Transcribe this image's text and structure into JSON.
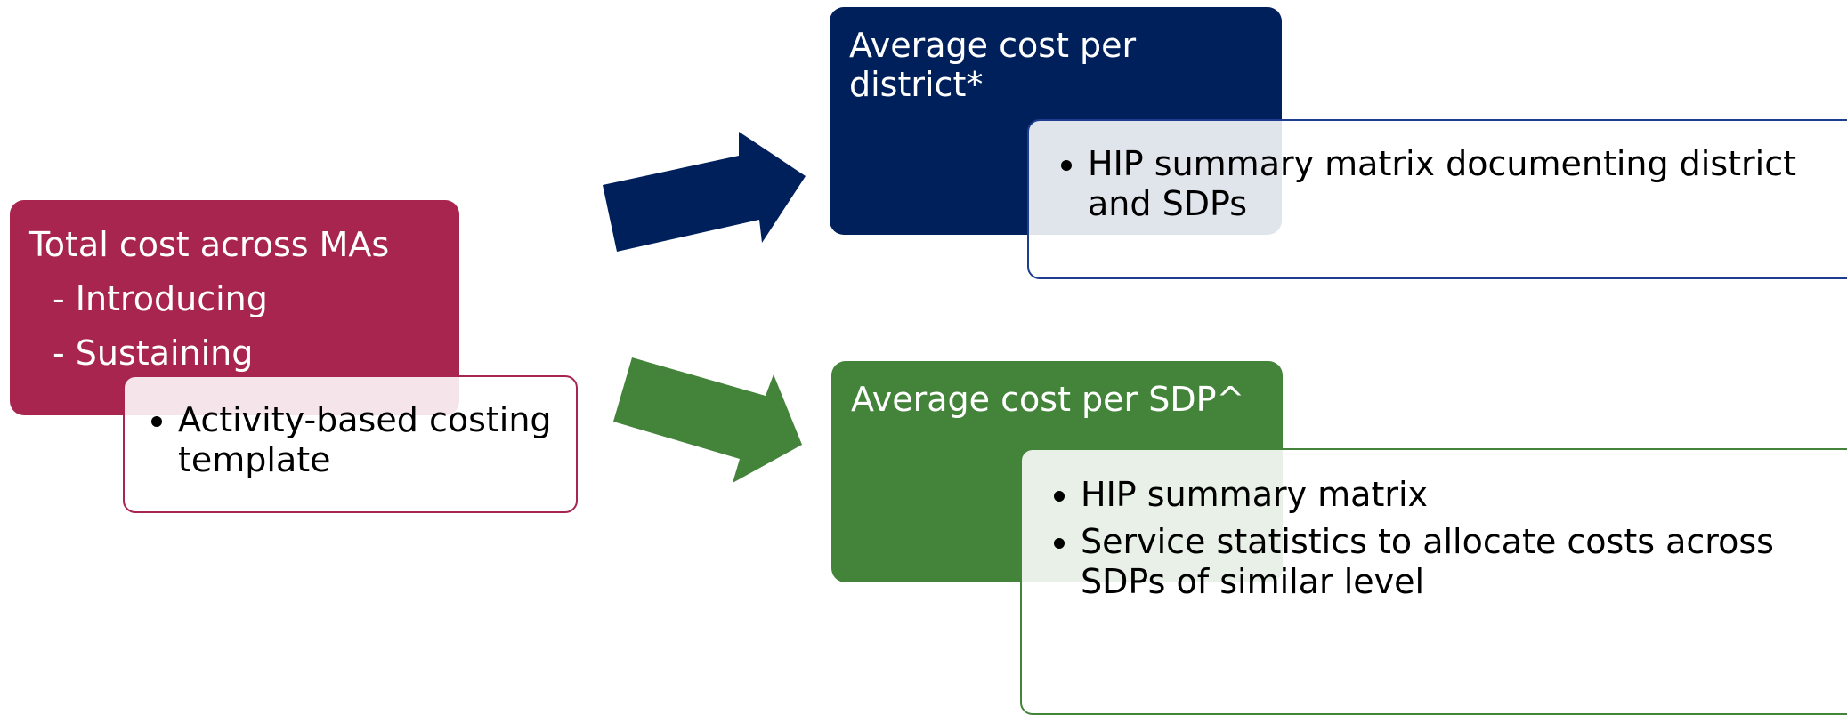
{
  "left": {
    "title": "Total cost across MAs",
    "items": [
      "- Introducing",
      "- Sustaining"
    ],
    "detail": [
      "Activity-based costing template"
    ]
  },
  "top": {
    "title": "Average cost per district*",
    "detail": [
      "HIP summary matrix documenting district and SDPs"
    ]
  },
  "bottom": {
    "title": "Average cost per SDP^",
    "detail": [
      "HIP summary matrix",
      "Service statistics to allocate costs across SDPs of similar level"
    ]
  }
}
